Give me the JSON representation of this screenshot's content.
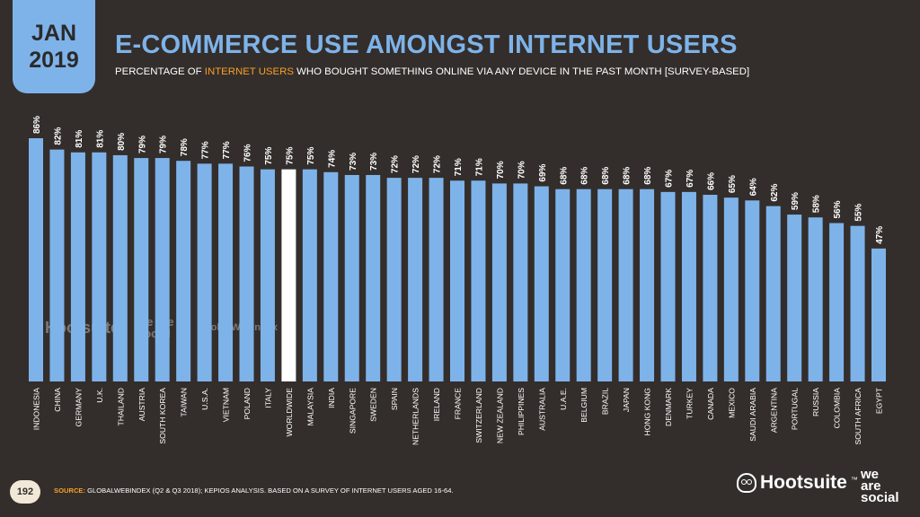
{
  "header": {
    "date_month": "JAN",
    "date_year": "2019",
    "title": "E-COMMERCE USE AMONGST INTERNET USERS",
    "subtitle_pre": "PERCENTAGE OF ",
    "subtitle_highlight": "INTERNET USERS",
    "subtitle_post": " WHO BOUGHT SOMETHING ONLINE VIA ANY DEVICE IN THE PAST MONTH [SURVEY-BASED]"
  },
  "footer": {
    "page_number": "192",
    "source_label": "SOURCE:",
    "source_text": " GLOBALWEBINDEX (Q2 & Q3 2018); KEPIOS ANALYSIS. BASED ON A SURVEY OF INTERNET USERS AGED 16-64.",
    "brand_hootsuite": "Hootsuite",
    "brand_tm": "™",
    "brand_we": "we",
    "brand_are": "are",
    "brand_social": "social",
    "watermark_hootsuite": "Hootsuite",
    "watermark_was": "we are social",
    "watermark_gwi": "GlobalWebIndex"
  },
  "colors": {
    "background": "#332e2b",
    "bar": "#7eb3ea",
    "highlight_bar": "#ffffff",
    "accent": "#f7a02a",
    "text": "#ffffff"
  },
  "chart_data": {
    "type": "bar",
    "categories": [
      "INDONESIA",
      "CHINA",
      "GERMANY",
      "U.K.",
      "THAILAND",
      "AUSTRIA",
      "SOUTH KOREA",
      "TAIWAN",
      "U.S.A.",
      "VIETNAM",
      "POLAND",
      "ITALY",
      "WORLDWIDE",
      "MALAYSIA",
      "INDIA",
      "SINGAPORE",
      "SWEDEN",
      "SPAIN",
      "NETHERLANDS",
      "IRELAND",
      "FRANCE",
      "SWITZERLAND",
      "NEW ZEALAND",
      "PHILIPPINES",
      "AUSTRALIA",
      "U.A.E.",
      "BELGIUM",
      "BRAZIL",
      "JAPAN",
      "HONG KONG",
      "DENMARK",
      "TURKEY",
      "CANADA",
      "MEXICO",
      "SAUDI ARABIA",
      "ARGENTINA",
      "PORTUGAL",
      "RUSSIA",
      "COLOMBIA",
      "SOUTH AFRICA",
      "EGYPT"
    ],
    "values": [
      86,
      82,
      81,
      81,
      80,
      79,
      79,
      78,
      77,
      77,
      76,
      75,
      75,
      75,
      74,
      73,
      73,
      72,
      72,
      72,
      71,
      71,
      70,
      70,
      69,
      68,
      68,
      68,
      68,
      68,
      67,
      67,
      66,
      65,
      64,
      62,
      59,
      58,
      56,
      55,
      47
    ],
    "value_labels": [
      "86%",
      "82%",
      "81%",
      "81%",
      "80%",
      "79%",
      "79%",
      "78%",
      "77%",
      "77%",
      "76%",
      "75%",
      "75%",
      "75%",
      "74%",
      "73%",
      "73%",
      "72%",
      "72%",
      "72%",
      "71%",
      "71%",
      "70%",
      "70%",
      "69%",
      "68%",
      "68%",
      "68%",
      "68%",
      "68%",
      "67%",
      "67%",
      "66%",
      "65%",
      "64%",
      "62%",
      "59%",
      "58%",
      "56%",
      "55%",
      "47%"
    ],
    "highlight_category": "WORLDWIDE",
    "unit": "%",
    "ylim": [
      0,
      100
    ]
  }
}
